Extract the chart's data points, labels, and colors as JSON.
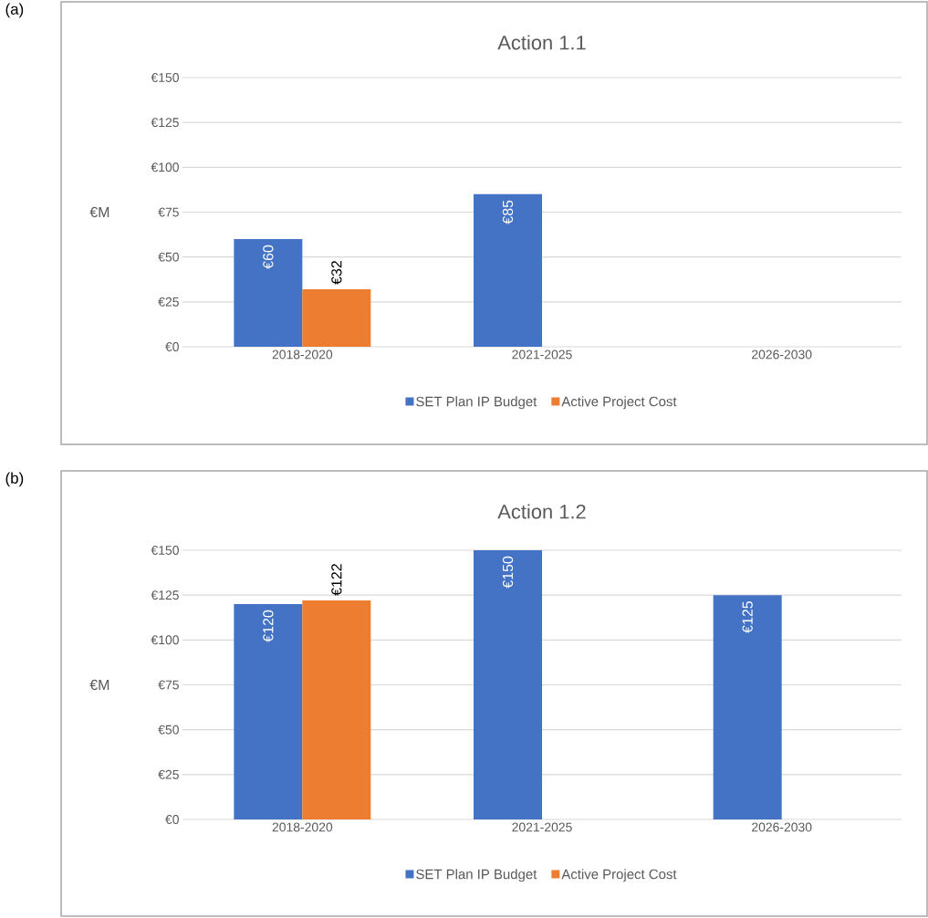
{
  "chart_data": [
    {
      "type": "bar",
      "title": "Action 1.1",
      "ylabel": "€M",
      "annotations": [
        "(a)"
      ],
      "categories": [
        "2018-2020",
        "2021-2025",
        "2026-2030"
      ],
      "series": [
        {
          "name": "SET Plan IP Budget",
          "color": "#4472c4",
          "values": [
            60,
            85,
            null
          ],
          "value_labels": [
            "€60",
            "€85",
            null
          ]
        },
        {
          "name": "Active Project Cost",
          "color": "#ed7d31",
          "values": [
            32,
            null,
            null
          ],
          "value_labels": [
            "€32",
            null,
            null
          ]
        }
      ],
      "ylim": [
        0,
        150
      ],
      "yticks": [
        {
          "value": 0,
          "label": "€0"
        },
        {
          "value": 25,
          "label": "€25"
        },
        {
          "value": 50,
          "label": "€50"
        },
        {
          "value": 75,
          "label": "€75"
        },
        {
          "value": 100,
          "label": "€100"
        },
        {
          "value": 125,
          "label": "€125"
        },
        {
          "value": 150,
          "label": "€150"
        }
      ],
      "grid": "y",
      "legend": "bottom"
    },
    {
      "type": "bar",
      "title": "Action 1.2",
      "ylabel": "€M",
      "annotations": [
        "(b)"
      ],
      "categories": [
        "2018-2020",
        "2021-2025",
        "2026-2030"
      ],
      "series": [
        {
          "name": "SET Plan IP Budget",
          "color": "#4472c4",
          "values": [
            120,
            150,
            125
          ],
          "value_labels": [
            "€120",
            "€150",
            "€125"
          ]
        },
        {
          "name": "Active Project Cost",
          "color": "#ed7d31",
          "values": [
            122,
            null,
            null
          ],
          "value_labels": [
            "€122",
            null,
            null
          ]
        }
      ],
      "ylim": [
        0,
        150
      ],
      "yticks": [
        {
          "value": 0,
          "label": "€0"
        },
        {
          "value": 25,
          "label": "€25"
        },
        {
          "value": 50,
          "label": "€50"
        },
        {
          "value": 75,
          "label": "€75"
        },
        {
          "value": 100,
          "label": "€100"
        },
        {
          "value": 125,
          "label": "€125"
        },
        {
          "value": 150,
          "label": "€150"
        }
      ],
      "grid": "y",
      "legend": "bottom"
    }
  ]
}
